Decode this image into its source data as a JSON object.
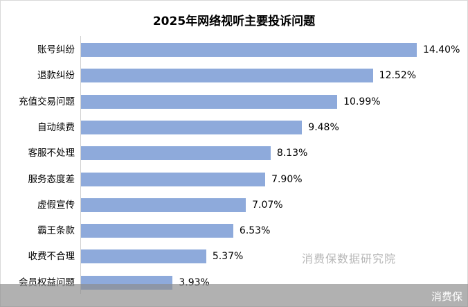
{
  "chart_data": {
    "type": "bar",
    "orientation": "horizontal",
    "title": "2025年网络视听主要投诉问题",
    "xlabel": "",
    "ylabel": "",
    "categories": [
      "账号纠纷",
      "退款纠纷",
      "充值交易问题",
      "自动续费",
      "客服不处理",
      "服务态度差",
      "虚假宣传",
      "霸王条款",
      "收费不合理",
      "会员权益问题"
    ],
    "values": [
      14.4,
      12.52,
      10.99,
      9.48,
      8.13,
      7.9,
      7.07,
      6.53,
      5.37,
      3.93
    ],
    "value_labels": [
      "14.40%",
      "12.52%",
      "10.99%",
      "9.48%",
      "8.13%",
      "7.90%",
      "7.07%",
      "6.53%",
      "5.37%",
      "3.93%"
    ],
    "unit": "%",
    "grid": false,
    "legend": "none",
    "bar_color": "#8eaadb"
  },
  "watermark": "消费保数据研究院",
  "footer": {
    "text": "消费保"
  },
  "colors": {
    "bar": "#8eaadb",
    "axis": "#d0d0d0",
    "footer": "#a6a6a6",
    "watermark": "#b8b8b8"
  }
}
